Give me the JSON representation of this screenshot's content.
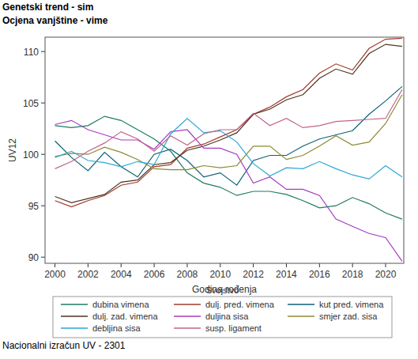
{
  "chart_data": {
    "type": "line",
    "title": "Genetski trend - sim",
    "subtitle": "Ocjena vanjštine - vime",
    "x_label": "Godina rođenja",
    "y_label": "UV12",
    "legend_title": "Svojstvo",
    "footnote": "Nacionalni izračun UV - 2301",
    "legend": "bottom",
    "grid": false,
    "x": [
      2000,
      2001,
      2002,
      2003,
      2004,
      2005,
      2006,
      2007,
      2008,
      2009,
      2010,
      2011,
      2012,
      2013,
      2014,
      2015,
      2016,
      2017,
      2018,
      2019,
      2020,
      2021
    ],
    "xlim": [
      1999.4,
      2021.1
    ],
    "xticks": [
      2000,
      2002,
      2004,
      2006,
      2008,
      2010,
      2012,
      2014,
      2016,
      2018,
      2020
    ],
    "ylim": [
      89.4,
      111.4
    ],
    "yticks": [
      90,
      95,
      100,
      105,
      110
    ],
    "series": [
      {
        "name": "dubina vimena",
        "color": "#1e7b63",
        "values": [
          102.8,
          102.6,
          102.8,
          103.7,
          103.3,
          102.4,
          101.5,
          100.3,
          98.2,
          97.2,
          96.8,
          96.0,
          96.4,
          96.4,
          96.1,
          95.5,
          94.8,
          95.0,
          95.8,
          95.2,
          94.3,
          93.7
        ]
      },
      {
        "name": "dulj. pred. vimena",
        "color": "#a03c2c",
        "values": [
          95.5,
          94.9,
          95.5,
          96.0,
          97.0,
          97.3,
          98.8,
          99.0,
          100.6,
          101.0,
          101.7,
          102.4,
          103.9,
          104.6,
          105.6,
          106.3,
          107.9,
          108.8,
          108.2,
          110.3,
          111.2,
          111.3
        ]
      },
      {
        "name": "kut pred. vimena",
        "color": "#0b6178",
        "values": [
          101.3,
          99.7,
          98.4,
          100.2,
          98.8,
          97.8,
          100.0,
          100.5,
          99.4,
          97.8,
          98.2,
          97.0,
          99.4,
          99.9,
          99.9,
          100.8,
          101.5,
          101.9,
          102.3,
          103.9,
          105.2,
          106.6
        ]
      },
      {
        "name": "dulj. zad. vimena",
        "color": "#4f3520",
        "values": [
          95.9,
          95.3,
          95.7,
          96.1,
          97.3,
          97.5,
          99.0,
          99.2,
          100.4,
          100.8,
          101.4,
          102.1,
          103.9,
          104.4,
          105.3,
          105.8,
          107.4,
          108.3,
          107.8,
          109.8,
          110.7,
          110.5
        ]
      },
      {
        "name": "duljina sisa",
        "color": "#a63cc2",
        "values": [
          102.9,
          103.3,
          102.4,
          101.9,
          101.4,
          101.4,
          100.5,
          102.2,
          102.4,
          100.6,
          100.6,
          100.0,
          97.2,
          97.8,
          96.6,
          96.6,
          96.0,
          93.7,
          93.0,
          92.3,
          91.9,
          89.6
        ]
      },
      {
        "name": "smjer zad. sisa",
        "color": "#8c8a34",
        "values": [
          99.8,
          100.1,
          100.0,
          100.7,
          100.2,
          99.5,
          98.6,
          98.5,
          98.5,
          98.9,
          98.7,
          98.9,
          100.8,
          100.8,
          99.5,
          99.9,
          100.8,
          101.8,
          100.9,
          101.2,
          103.0,
          105.8
        ]
      },
      {
        "name": "debljina sisa",
        "color": "#2ba6d6",
        "values": [
          99.7,
          100.3,
          99.4,
          99.2,
          98.8,
          99.3,
          99.0,
          102.0,
          103.5,
          102.1,
          102.3,
          101.2,
          99.1,
          97.9,
          98.7,
          98.6,
          99.3,
          98.6,
          98.0,
          97.6,
          98.9,
          97.8
        ]
      },
      {
        "name": "susp. ligament",
        "color": "#c2638a",
        "values": [
          98.6,
          99.3,
          100.3,
          101.1,
          102.2,
          101.5,
          100.3,
          101.8,
          100.9,
          102.0,
          102.4,
          102.4,
          104.0,
          102.8,
          103.5,
          102.6,
          102.8,
          103.2,
          103.3,
          103.4,
          103.5,
          106.3
        ]
      }
    ]
  }
}
